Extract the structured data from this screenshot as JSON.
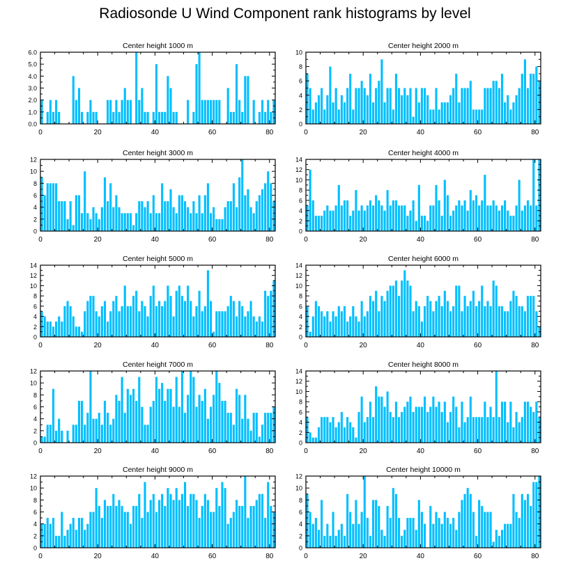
{
  "title": "Radiosonde U Wind Component rank histograms by level",
  "colors": {
    "bar": "#00BFFF",
    "axis": "#000000",
    "background": "#FFFFFF"
  },
  "chart_data": [
    {
      "type": "bar",
      "title": "Center height 1000 m",
      "xlabel": "",
      "ylabel": "",
      "xlim": [
        0,
        82
      ],
      "ylim": [
        0,
        6
      ],
      "xticks": [
        0,
        20,
        40,
        60,
        80
      ],
      "xtick_labels": [
        "0",
        "20",
        "40",
        "60",
        "80"
      ],
      "yticks": [
        0,
        1,
        2,
        3,
        4,
        5,
        6
      ],
      "ytick_labels": [
        "0.0",
        "1.0",
        "2.0",
        "3.0",
        "4.0",
        "5.0",
        "6.0"
      ],
      "values": [
        2,
        0,
        1,
        2,
        1,
        2,
        1,
        0,
        0,
        0,
        0,
        4,
        2,
        3,
        1,
        0,
        1,
        2,
        1,
        1,
        0,
        0,
        0,
        2,
        2,
        1,
        2,
        1,
        2,
        3,
        2,
        2,
        0,
        6,
        2,
        3,
        1,
        1,
        0,
        1,
        5,
        1,
        1,
        1,
        4,
        3,
        1,
        1,
        0,
        0,
        0,
        2,
        0,
        1,
        5,
        6,
        2,
        2,
        2,
        2,
        2,
        2,
        2,
        0,
        0,
        3,
        1,
        1,
        5,
        2,
        1,
        4,
        4,
        0,
        2,
        0,
        1,
        2,
        1,
        2,
        1,
        2
      ]
    },
    {
      "type": "bar",
      "title": "Center height 2000 m",
      "xlabel": "",
      "ylabel": "",
      "xlim": [
        0,
        82
      ],
      "ylim": [
        0,
        10
      ],
      "xticks": [
        0,
        20,
        40,
        60,
        80
      ],
      "xtick_labels": [
        "0",
        "20",
        "40",
        "60",
        "80"
      ],
      "yticks": [
        0,
        2,
        4,
        6,
        8,
        10
      ],
      "ytick_labels": [
        "0",
        "2",
        "4",
        "6",
        "8",
        "10"
      ],
      "values": [
        7,
        5,
        2,
        3,
        4,
        5,
        2,
        4,
        8,
        3,
        5,
        2,
        4,
        3,
        5,
        7,
        2,
        5,
        5,
        6,
        5,
        4,
        7,
        3,
        5,
        6,
        9,
        3,
        5,
        5,
        2,
        7,
        5,
        4,
        5,
        4,
        5,
        1,
        5,
        3,
        5,
        5,
        4,
        2,
        2,
        5,
        2,
        3,
        3,
        3,
        4,
        5,
        7,
        3,
        5,
        5,
        5,
        6,
        2,
        2,
        2,
        2,
        5,
        5,
        5,
        6,
        6,
        5,
        7,
        3,
        4,
        2,
        3,
        4,
        5,
        7,
        9,
        5,
        7,
        7,
        8,
        6
      ]
    },
    {
      "type": "bar",
      "title": "Center height 3000 m",
      "xlabel": "",
      "ylabel": "",
      "xlim": [
        0,
        82
      ],
      "ylim": [
        0,
        12
      ],
      "xticks": [
        0,
        20,
        40,
        60,
        80
      ],
      "xtick_labels": [
        "0",
        "20",
        "40",
        "60",
        "80"
      ],
      "yticks": [
        0,
        2,
        4,
        6,
        8,
        10,
        12
      ],
      "ytick_labels": [
        "0",
        "2",
        "4",
        "6",
        "8",
        "10",
        "12"
      ],
      "values": [
        9,
        6,
        8,
        8,
        8,
        8,
        5,
        5,
        5,
        2,
        5,
        1,
        6,
        6,
        3,
        10,
        3,
        2,
        4,
        3,
        2,
        4,
        9,
        5,
        8,
        4,
        6,
        4,
        3,
        3,
        3,
        3,
        1,
        3,
        5,
        5,
        4,
        5,
        3,
        6,
        3,
        3,
        8,
        5,
        5,
        7,
        4,
        3,
        6,
        6,
        5,
        4,
        3,
        5,
        3,
        6,
        3,
        6,
        8,
        3,
        4,
        2,
        2,
        2,
        4,
        5,
        5,
        8,
        4,
        9,
        12,
        6,
        7,
        4,
        3,
        5,
        6,
        7,
        8,
        10,
        8,
        5
      ]
    },
    {
      "type": "bar",
      "title": "Center height 4000 m",
      "xlabel": "",
      "ylabel": "",
      "xlim": [
        0,
        82
      ],
      "ylim": [
        0,
        14
      ],
      "xticks": [
        0,
        20,
        40,
        60,
        80
      ],
      "xtick_labels": [
        "0",
        "20",
        "40",
        "60",
        "80"
      ],
      "yticks": [
        0,
        2,
        4,
        6,
        8,
        10,
        12,
        14
      ],
      "ytick_labels": [
        "0",
        "2",
        "4",
        "6",
        "8",
        "10",
        "12",
        "14"
      ],
      "values": [
        5,
        12,
        6,
        3,
        3,
        3,
        4,
        5,
        4,
        4,
        5,
        9,
        5,
        6,
        6,
        3,
        4,
        8,
        4,
        5,
        4,
        5,
        6,
        5,
        7,
        6,
        5,
        4,
        8,
        5,
        6,
        6,
        5,
        5,
        5,
        3,
        4,
        6,
        2,
        9,
        3,
        3,
        2,
        5,
        5,
        9,
        6,
        3,
        10,
        7,
        3,
        4,
        5,
        6,
        5,
        6,
        4,
        8,
        6,
        7,
        5,
        6,
        11,
        5,
        5,
        6,
        5,
        4,
        5,
        6,
        4,
        3,
        3,
        5,
        10,
        4,
        5,
        6,
        5,
        14,
        5,
        14
      ]
    },
    {
      "type": "bar",
      "title": "Center height 5000 m",
      "xlabel": "",
      "ylabel": "",
      "xlim": [
        0,
        82
      ],
      "ylim": [
        0,
        14
      ],
      "xticks": [
        0,
        20,
        40,
        60,
        80
      ],
      "xtick_labels": [
        "0",
        "20",
        "40",
        "60",
        "80"
      ],
      "yticks": [
        0,
        2,
        4,
        6,
        8,
        10,
        12,
        14
      ],
      "ytick_labels": [
        "0",
        "2",
        "4",
        "6",
        "8",
        "10",
        "12",
        "14"
      ],
      "values": [
        5,
        4,
        3,
        3,
        2,
        3,
        4,
        3,
        6,
        7,
        6,
        4,
        2,
        2,
        1,
        5,
        7,
        8,
        8,
        5,
        4,
        6,
        7,
        3,
        5,
        7,
        8,
        5,
        6,
        10,
        6,
        6,
        8,
        9,
        5,
        7,
        6,
        4,
        8,
        10,
        6,
        7,
        6,
        7,
        10,
        8,
        4,
        9,
        10,
        8,
        7,
        10,
        7,
        4,
        6,
        9,
        5,
        6,
        13,
        7,
        1,
        5,
        5,
        5,
        5,
        6,
        8,
        7,
        4,
        7,
        6,
        4,
        5,
        7,
        4,
        3,
        4,
        3,
        9,
        8,
        9,
        11
      ]
    },
    {
      "type": "bar",
      "title": "Center height 6000 m",
      "xlabel": "",
      "ylabel": "",
      "xlim": [
        0,
        82
      ],
      "ylim": [
        0,
        14
      ],
      "xticks": [
        0,
        20,
        40,
        60,
        80
      ],
      "xtick_labels": [
        "0",
        "20",
        "40",
        "60",
        "80"
      ],
      "yticks": [
        0,
        2,
        4,
        6,
        8,
        10,
        12,
        14
      ],
      "ytick_labels": [
        "0",
        "2",
        "4",
        "6",
        "8",
        "10",
        "12",
        "14"
      ],
      "values": [
        6,
        1,
        4,
        7,
        6,
        5,
        4,
        5,
        3,
        5,
        4,
        6,
        5,
        6,
        3,
        4,
        6,
        4,
        3,
        7,
        4,
        5,
        8,
        7,
        9,
        5,
        8,
        7,
        9,
        10,
        10,
        11,
        8,
        11,
        13,
        11,
        10,
        5,
        7,
        6,
        3,
        6,
        8,
        7,
        5,
        7,
        8,
        6,
        9,
        7,
        5,
        6,
        10,
        10,
        5,
        8,
        6,
        7,
        9,
        6,
        7,
        10,
        6,
        7,
        6,
        11,
        10,
        6,
        6,
        5,
        5,
        7,
        9,
        8,
        6,
        6,
        5,
        8,
        8,
        8,
        5,
        2
      ]
    },
    {
      "type": "bar",
      "title": "Center height 7000 m",
      "xlabel": "",
      "ylabel": "",
      "xlim": [
        0,
        82
      ],
      "ylim": [
        0,
        12
      ],
      "xticks": [
        0,
        20,
        40,
        60,
        80
      ],
      "xtick_labels": [
        "0",
        "20",
        "40",
        "60",
        "80"
      ],
      "yticks": [
        0,
        2,
        4,
        6,
        8,
        10,
        12
      ],
      "ytick_labels": [
        "0",
        "2",
        "4",
        "6",
        "8",
        "10",
        "12"
      ],
      "values": [
        1,
        1,
        3,
        3,
        9,
        2,
        4,
        2,
        0,
        2,
        0,
        3,
        3,
        7,
        7,
        3,
        5,
        12,
        4,
        4,
        5,
        3,
        7,
        5,
        3,
        4,
        8,
        7,
        11,
        5,
        9,
        8,
        9,
        7,
        11,
        6,
        3,
        3,
        6,
        7,
        11,
        9,
        10,
        7,
        9,
        9,
        6,
        11,
        6,
        12,
        5,
        8,
        12,
        11,
        6,
        8,
        7,
        9,
        4,
        6,
        8,
        12,
        10,
        7,
        7,
        5,
        5,
        3,
        9,
        8,
        4,
        8,
        4,
        2,
        5,
        5,
        1,
        3,
        5,
        5,
        5,
        6
      ]
    },
    {
      "type": "bar",
      "title": "Center height 8000 m",
      "xlabel": "",
      "ylabel": "",
      "xlim": [
        0,
        82
      ],
      "ylim": [
        0,
        14
      ],
      "xticks": [
        0,
        20,
        40,
        60,
        80
      ],
      "xtick_labels": [
        "0",
        "20",
        "40",
        "60",
        "80"
      ],
      "yticks": [
        0,
        2,
        4,
        6,
        8,
        10,
        12,
        14
      ],
      "ytick_labels": [
        "0",
        "2",
        "4",
        "6",
        "8",
        "10",
        "12",
        "14"
      ],
      "values": [
        5,
        2,
        1,
        1,
        3,
        5,
        5,
        5,
        4,
        5,
        3,
        4,
        6,
        3,
        5,
        4,
        3,
        1,
        6,
        9,
        4,
        5,
        8,
        5,
        11,
        9,
        9,
        7,
        10,
        6,
        5,
        8,
        5,
        6,
        7,
        8,
        9,
        6,
        7,
        7,
        7,
        9,
        6,
        7,
        9,
        7,
        8,
        6,
        8,
        4,
        6,
        9,
        7,
        3,
        8,
        4,
        5,
        9,
        5,
        5,
        5,
        5,
        8,
        5,
        7,
        5,
        14,
        5,
        8,
        8,
        4,
        8,
        3,
        6,
        4,
        5,
        8,
        8,
        7,
        6,
        8,
        5
      ]
    },
    {
      "type": "bar",
      "title": "Center height 9000 m",
      "xlabel": "",
      "ylabel": "",
      "xlim": [
        0,
        82
      ],
      "ylim": [
        0,
        12
      ],
      "xticks": [
        0,
        20,
        40,
        60,
        80
      ],
      "xtick_labels": [
        "0",
        "20",
        "40",
        "60",
        "80"
      ],
      "yticks": [
        0,
        2,
        4,
        6,
        8,
        10,
        12
      ],
      "ytick_labels": [
        "0",
        "2",
        "4",
        "6",
        "8",
        "10",
        "12"
      ],
      "values": [
        4,
        4,
        5,
        4,
        5,
        2,
        2,
        6,
        2,
        3,
        4,
        5,
        3,
        5,
        5,
        3,
        4,
        6,
        6,
        10,
        7,
        5,
        8,
        7,
        7,
        9,
        7,
        8,
        7,
        6,
        6,
        4,
        7,
        7,
        9,
        5,
        11,
        6,
        8,
        9,
        6,
        8,
        9,
        7,
        10,
        9,
        8,
        10,
        8,
        9,
        11,
        7,
        9,
        9,
        8,
        5,
        7,
        9,
        8,
        6,
        6,
        10,
        7,
        11,
        10,
        4,
        5,
        6,
        8,
        7,
        7,
        12,
        5,
        7,
        7,
        8,
        9,
        9,
        5,
        11,
        7,
        6
      ]
    },
    {
      "type": "bar",
      "title": "Center height 10000 m",
      "xlabel": "",
      "ylabel": "",
      "xlim": [
        0,
        82
      ],
      "ylim": [
        0,
        12
      ],
      "xticks": [
        0,
        20,
        40,
        60,
        80
      ],
      "xtick_labels": [
        "0",
        "20",
        "40",
        "60",
        "80"
      ],
      "yticks": [
        0,
        2,
        4,
        6,
        8,
        10,
        12
      ],
      "ytick_labels": [
        "0",
        "2",
        "4",
        "6",
        "8",
        "10",
        "12"
      ],
      "values": [
        9,
        6,
        4,
        5,
        3,
        8,
        2,
        4,
        2,
        6,
        2,
        3,
        4,
        2,
        9,
        6,
        4,
        8,
        4,
        6,
        12,
        5,
        2,
        8,
        8,
        7,
        3,
        2,
        7,
        5,
        10,
        9,
        5,
        2,
        3,
        5,
        5,
        5,
        3,
        8,
        6,
        4,
        0,
        7,
        4,
        6,
        5,
        4,
        6,
        5,
        4,
        5,
        3,
        6,
        8,
        9,
        10,
        9,
        6,
        2,
        8,
        7,
        6,
        6,
        6,
        1,
        3,
        2,
        3,
        4,
        4,
        4,
        9,
        6,
        5,
        9,
        8,
        9,
        7,
        11,
        11,
        12
      ]
    }
  ]
}
